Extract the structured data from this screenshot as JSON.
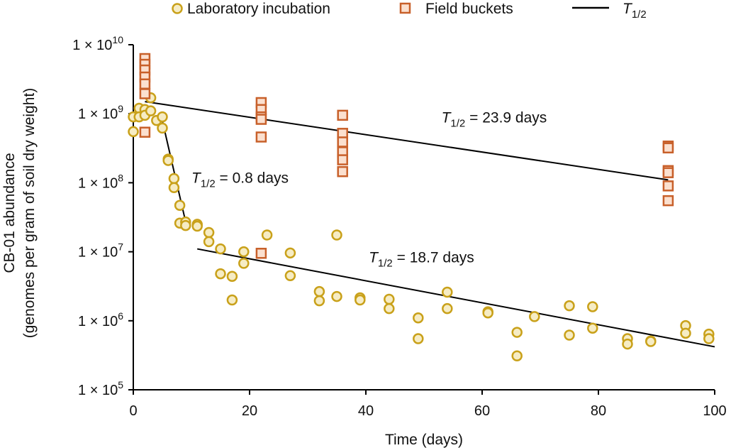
{
  "chart_data": {
    "type": "scatter",
    "xlabel": "Time (days)",
    "ylabel_line1": "CB-01 abundance",
    "ylabel_line2": "(genomes per gram of soil dry weight)",
    "xlim": [
      0,
      100
    ],
    "ylim": [
      100000,
      10000000000
    ],
    "yscale": "log",
    "x_ticks": [
      0,
      20,
      40,
      60,
      80,
      100
    ],
    "x_tick_labels": [
      "0",
      "20",
      "40",
      "60",
      "80",
      "100"
    ],
    "y_ticks": [
      {
        "value": 100000,
        "base": "1 × 10",
        "exp": "5"
      },
      {
        "value": 1000000,
        "base": "1 × 10",
        "exp": "6"
      },
      {
        "value": 10000000,
        "base": "1 × 10",
        "exp": "7"
      },
      {
        "value": 100000000,
        "base": "1 × 10",
        "exp": "8"
      },
      {
        "value": 1000000000,
        "base": "1 × 10",
        "exp": "9"
      },
      {
        "value": 10000000000,
        "base": "1 × 10",
        "exp": "10"
      }
    ],
    "grid": false,
    "legend_position": "top",
    "legend": [
      {
        "name": "Laboratory incubation",
        "marker": "circle"
      },
      {
        "name": "Field buckets",
        "marker": "square"
      },
      {
        "name_main": "T",
        "name_sub": "1/2",
        "marker": "line"
      }
    ],
    "series": [
      {
        "name": "Laboratory incubation",
        "marker": "circle",
        "color": "#c9a11a",
        "fill": "#f6ecc4",
        "points": [
          [
            0,
            900000000
          ],
          [
            0,
            550000000
          ],
          [
            1,
            1200000000
          ],
          [
            1,
            900000000
          ],
          [
            2,
            1150000000
          ],
          [
            2,
            950000000
          ],
          [
            3,
            1700000000
          ],
          [
            3,
            1100000000
          ],
          [
            4,
            800000000
          ],
          [
            5,
            900000000
          ],
          [
            5,
            620000000
          ],
          [
            6,
            220000000
          ],
          [
            6,
            210000000
          ],
          [
            7,
            115000000
          ],
          [
            7,
            85000000
          ],
          [
            8,
            47000000
          ],
          [
            8,
            26000000
          ],
          [
            9,
            27000000
          ],
          [
            9,
            24000000
          ],
          [
            11,
            25000000
          ],
          [
            11,
            23500000
          ],
          [
            13,
            19000000
          ],
          [
            13,
            14000000
          ],
          [
            15,
            11000000
          ],
          [
            15,
            4800000
          ],
          [
            17,
            4400000
          ],
          [
            17,
            2000000
          ],
          [
            19,
            10000000
          ],
          [
            19,
            6800000
          ],
          [
            23,
            17500000
          ],
          [
            27,
            9600000
          ],
          [
            27,
            4500000
          ],
          [
            32,
            2650000
          ],
          [
            32,
            1950000
          ],
          [
            35,
            17500000
          ],
          [
            35,
            2250000
          ],
          [
            39,
            2150000
          ],
          [
            39,
            2000000
          ],
          [
            44,
            2050000
          ],
          [
            44,
            1500000
          ],
          [
            49,
            1100000
          ],
          [
            49,
            550000
          ],
          [
            54,
            2600000
          ],
          [
            54,
            1500000
          ],
          [
            61,
            1350000
          ],
          [
            61,
            1300000
          ],
          [
            66,
            680000
          ],
          [
            66,
            310000
          ],
          [
            69,
            1150000
          ],
          [
            75,
            1650000
          ],
          [
            75,
            620000
          ],
          [
            79,
            1600000
          ],
          [
            79,
            780000
          ],
          [
            85,
            550000
          ],
          [
            85,
            460000
          ],
          [
            89,
            510000
          ],
          [
            89,
            500000
          ],
          [
            95,
            850000
          ],
          [
            95,
            660000
          ],
          [
            99,
            640000
          ],
          [
            99,
            550000
          ]
        ]
      },
      {
        "name": "Field buckets",
        "marker": "square",
        "color": "#c8602a",
        "fill": "#fbe0cf",
        "points": [
          [
            2,
            6300000000
          ],
          [
            2,
            5200000000
          ],
          [
            2,
            4300000000
          ],
          [
            2,
            3400000000
          ],
          [
            2,
            2700000000
          ],
          [
            2,
            1950000000
          ],
          [
            2,
            540000000
          ],
          [
            22,
            1450000000
          ],
          [
            22,
            1150000000
          ],
          [
            22,
            900000000
          ],
          [
            22,
            830000000
          ],
          [
            22,
            460000000
          ],
          [
            22,
            9500000
          ],
          [
            36,
            950000000
          ],
          [
            36,
            520000000
          ],
          [
            36,
            390000000
          ],
          [
            36,
            280000000
          ],
          [
            36,
            215000000
          ],
          [
            36,
            145000000
          ],
          [
            92,
            340000000
          ],
          [
            92,
            320000000
          ],
          [
            92,
            150000000
          ],
          [
            92,
            140000000
          ],
          [
            92,
            90000000
          ],
          [
            92,
            55000000
          ]
        ]
      }
    ],
    "fit_lines": [
      {
        "x": [
          2,
          92
        ],
        "y": [
          1500000000,
          110000000
        ]
      },
      {
        "x": [
          5,
          9.2
        ],
        "y": [
          790000000,
          23000000
        ]
      },
      {
        "x": [
          11,
          100
        ],
        "y": [
          11000000,
          420000
        ]
      }
    ],
    "annotations": [
      {
        "x": 53,
        "y": 750000000,
        "main": "T",
        "sub": "1/2",
        "rest": " = 23.9 days"
      },
      {
        "x": 10,
        "y": 100000000,
        "main": "T",
        "sub": "1/2",
        "rest": " = 0.8 days"
      },
      {
        "x": 40.5,
        "y": 7000000,
        "main": "T",
        "sub": "1/2",
        "rest": " = 18.7 days"
      }
    ]
  }
}
